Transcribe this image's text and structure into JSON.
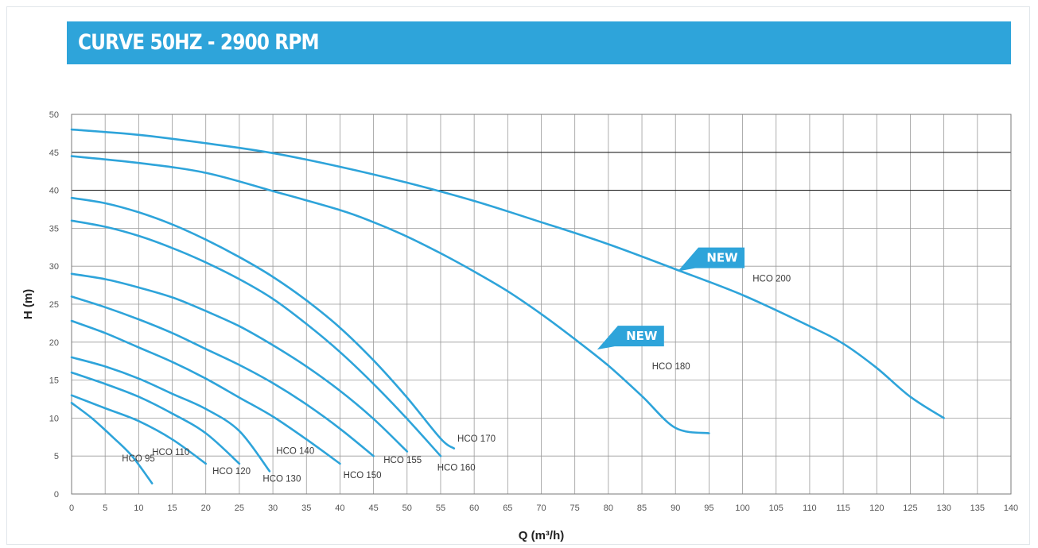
{
  "title": "CURVE 50HZ - 2900 RPM",
  "colors": {
    "banner": "#2ea4da",
    "curve": "#2ea4da",
    "badge": "#2ea4da",
    "grid": "#9a9a9a",
    "grid_major": "#222222"
  },
  "chart_data": {
    "type": "line",
    "title": "CURVE 50HZ - 2900 RPM",
    "xlabel": "Q (m³/h)",
    "ylabel": "H (m)",
    "xlim": [
      0,
      140
    ],
    "ylim": [
      0,
      50
    ],
    "x_ticks": [
      0,
      5,
      10,
      15,
      20,
      25,
      30,
      35,
      40,
      45,
      50,
      55,
      60,
      65,
      70,
      75,
      80,
      85,
      90,
      95,
      100,
      105,
      110,
      115,
      120,
      125,
      130,
      135,
      140
    ],
    "y_ticks": [
      0,
      5,
      10,
      15,
      20,
      25,
      30,
      35,
      40,
      45,
      50
    ],
    "major_gridlines_y": [
      40,
      45,
      50
    ],
    "grid": true,
    "series": [
      {
        "name": "HCO 95",
        "label_at": [
          7.5,
          4.3
        ],
        "points": [
          [
            0,
            12
          ],
          [
            3,
            10
          ],
          [
            6,
            7.6
          ],
          [
            9,
            5
          ],
          [
            12,
            1.4
          ]
        ]
      },
      {
        "name": "HCO 110",
        "label_at": [
          12,
          5.1
        ],
        "points": [
          [
            0,
            13
          ],
          [
            5,
            11.3
          ],
          [
            10,
            9.6
          ],
          [
            15,
            7.2
          ],
          [
            20,
            4
          ]
        ]
      },
      {
        "name": "HCO 120",
        "label_at": [
          21,
          2.6
        ],
        "points": [
          [
            0,
            16
          ],
          [
            5,
            14.5
          ],
          [
            10,
            12.8
          ],
          [
            15,
            10.6
          ],
          [
            20,
            8
          ],
          [
            25,
            4
          ]
        ]
      },
      {
        "name": "HCO 130",
        "label_at": [
          28.5,
          1.6
        ],
        "points": [
          [
            0,
            18
          ],
          [
            5,
            16.8
          ],
          [
            10,
            15.2
          ],
          [
            15,
            13.2
          ],
          [
            20,
            11.2
          ],
          [
            25,
            8.3
          ],
          [
            29.5,
            3
          ]
        ]
      },
      {
        "name": "HCO 140",
        "label_at": [
          30.5,
          5.3
        ],
        "points": [
          [
            0,
            22.8
          ],
          [
            5,
            21.2
          ],
          [
            10,
            19.3
          ],
          [
            15,
            17.4
          ],
          [
            20,
            15.2
          ],
          [
            25,
            12.7
          ],
          [
            30,
            10.2
          ],
          [
            35,
            7.2
          ],
          [
            40,
            4
          ]
        ]
      },
      {
        "name": "HCO 150",
        "label_at": [
          40.5,
          2.1
        ],
        "points": [
          [
            0,
            26
          ],
          [
            5,
            24.6
          ],
          [
            10,
            23
          ],
          [
            15,
            21.2
          ],
          [
            20,
            19.1
          ],
          [
            25,
            17
          ],
          [
            30,
            14.6
          ],
          [
            35,
            11.8
          ],
          [
            40,
            8.6
          ],
          [
            45,
            5
          ]
        ]
      },
      {
        "name": "HCO 155",
        "label_at": [
          46.5,
          4.1
        ],
        "points": [
          [
            0,
            29
          ],
          [
            5,
            28.3
          ],
          [
            10,
            27.2
          ],
          [
            15,
            25.9
          ],
          [
            20,
            24.1
          ],
          [
            25,
            22.1
          ],
          [
            30,
            19.6
          ],
          [
            35,
            16.8
          ],
          [
            40,
            13.6
          ],
          [
            45,
            9.9
          ],
          [
            50,
            5.6
          ]
        ]
      },
      {
        "name": "HCO 160",
        "label_at": [
          54.5,
          3.1
        ],
        "points": [
          [
            0,
            36
          ],
          [
            5,
            35.2
          ],
          [
            10,
            34
          ],
          [
            15,
            32.4
          ],
          [
            20,
            30.5
          ],
          [
            25,
            28.3
          ],
          [
            30,
            25.7
          ],
          [
            35,
            22.4
          ],
          [
            40,
            18.7
          ],
          [
            45,
            14.5
          ],
          [
            50,
            9.9
          ],
          [
            55,
            5
          ]
        ]
      },
      {
        "name": "HCO 170",
        "label_at": [
          57.5,
          6.9
        ],
        "points": [
          [
            0,
            39
          ],
          [
            5,
            38.3
          ],
          [
            10,
            37.1
          ],
          [
            15,
            35.5
          ],
          [
            20,
            33.5
          ],
          [
            25,
            31.2
          ],
          [
            30,
            28.6
          ],
          [
            35,
            25.5
          ],
          [
            40,
            21.9
          ],
          [
            45,
            17.6
          ],
          [
            50,
            12.7
          ],
          [
            55,
            7.3
          ],
          [
            57,
            6
          ]
        ]
      },
      {
        "name": "HCO 180",
        "label_at": [
          86.5,
          16.4
        ],
        "points": [
          [
            0,
            44.5
          ],
          [
            10,
            43.6
          ],
          [
            20,
            42.3
          ],
          [
            30,
            39.9
          ],
          [
            40,
            37.4
          ],
          [
            45,
            35.8
          ],
          [
            50,
            33.9
          ],
          [
            55,
            31.7
          ],
          [
            60,
            29.3
          ],
          [
            65,
            26.7
          ],
          [
            70,
            23.7
          ],
          [
            75,
            20.4
          ],
          [
            80,
            16.9
          ],
          [
            85,
            12.9
          ],
          [
            90,
            8.7
          ],
          [
            95,
            8
          ]
        ]
      },
      {
        "name": "HCO 200",
        "label_at": [
          101.5,
          28
        ],
        "points": [
          [
            0,
            48
          ],
          [
            10,
            47.3
          ],
          [
            20,
            46.2
          ],
          [
            30,
            44.9
          ],
          [
            40,
            43.1
          ],
          [
            50,
            41
          ],
          [
            60,
            38.6
          ],
          [
            70,
            35.8
          ],
          [
            80,
            32.9
          ],
          [
            90,
            29.6
          ],
          [
            100,
            26.2
          ],
          [
            110,
            22.1
          ],
          [
            115,
            19.8
          ],
          [
            120,
            16.6
          ],
          [
            125,
            12.8
          ],
          [
            130,
            10
          ]
        ]
      }
    ],
    "annotations": [
      {
        "text": "NEW",
        "x": 96.5,
        "y": 31.1
      },
      {
        "text": "NEW",
        "x": 84.5,
        "y": 20.8
      }
    ]
  }
}
